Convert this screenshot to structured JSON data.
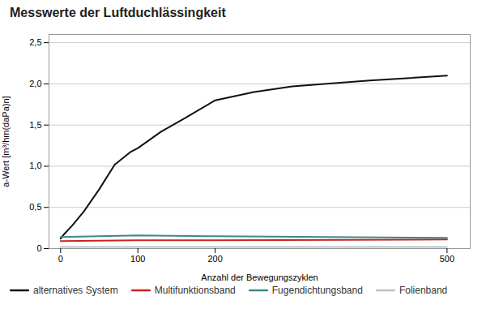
{
  "chart_data": {
    "type": "line",
    "title": "Messwerte der Luftduchlässingkeit",
    "xlabel": "Anzahl der Bewegungszyklen",
    "ylabel": "a-Wert [m³/hm(daPa)n]",
    "xlim": [
      -15,
      530
    ],
    "xticks": [
      0,
      100,
      200,
      500
    ],
    "ylim": [
      0,
      2.6
    ],
    "yticks": [
      0,
      {
        "value": 0.5,
        "label": "0,5"
      },
      {
        "value": 1.0,
        "label": "1,0"
      },
      {
        "value": 1.5,
        "label": "1,5"
      },
      {
        "value": 2.0,
        "label": "2,0"
      },
      {
        "value": 2.5,
        "label": "2,5"
      }
    ],
    "grid": "y",
    "legend": "bottom",
    "series": [
      {
        "name": "alternatives System",
        "color": "#111111",
        "x": [
          0,
          5,
          15,
          30,
          50,
          70,
          90,
          100,
          130,
          160,
          200,
          250,
          300,
          400,
          500
        ],
        "values": [
          0.12,
          0.18,
          0.28,
          0.45,
          0.72,
          1.02,
          1.17,
          1.22,
          1.42,
          1.58,
          1.8,
          1.9,
          1.97,
          2.04,
          2.1
        ]
      },
      {
        "name": "Multifunktionsband",
        "color": "#cc2222",
        "x": [
          0,
          100,
          200,
          500
        ],
        "values": [
          0.09,
          0.1,
          0.1,
          0.11
        ]
      },
      {
        "name": "Fugendichtungsband",
        "color": "#3a8a8a",
        "x": [
          0,
          100,
          200,
          500
        ],
        "values": [
          0.14,
          0.16,
          0.15,
          0.13
        ]
      },
      {
        "name": "Folienband",
        "color": "#b8c4c4",
        "x": [
          0,
          100,
          200,
          500
        ],
        "values": [
          0.02,
          0.02,
          0.02,
          0.02
        ]
      }
    ]
  }
}
